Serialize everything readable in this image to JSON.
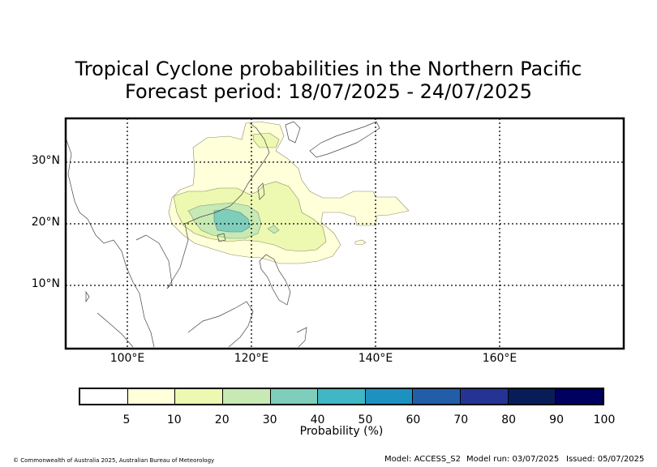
{
  "title_line1": "Tropical Cyclone probabilities in the Northern Pacific",
  "title_line2": "Forecast period: 18/07/2025 - 24/07/2025",
  "map": {
    "lat_labels": [
      "30°N",
      "20°N",
      "10°N"
    ],
    "lon_labels": [
      "100°E",
      "120°E",
      "140°E",
      "160°E"
    ]
  },
  "colorbar": {
    "label": "Probability (%)",
    "ticks": [
      "5",
      "10",
      "20",
      "30",
      "40",
      "50",
      "60",
      "70",
      "80",
      "90",
      "100"
    ],
    "colors": [
      "#ffffff",
      "#ffffd9",
      "#edf8b1",
      "#c7e9b4",
      "#7fcdbb",
      "#41b6c4",
      "#1d91c0",
      "#225ea8",
      "#253494",
      "#081d58",
      "#000061"
    ]
  },
  "footer": {
    "copyright": "© Commonwealth of Australia 2025, Australian Bureau of Meteorology",
    "model": "Model: ACCESS_S2",
    "model_run": "Model run: 03/07/2025",
    "issued": "Issued: 05/07/2025"
  }
}
